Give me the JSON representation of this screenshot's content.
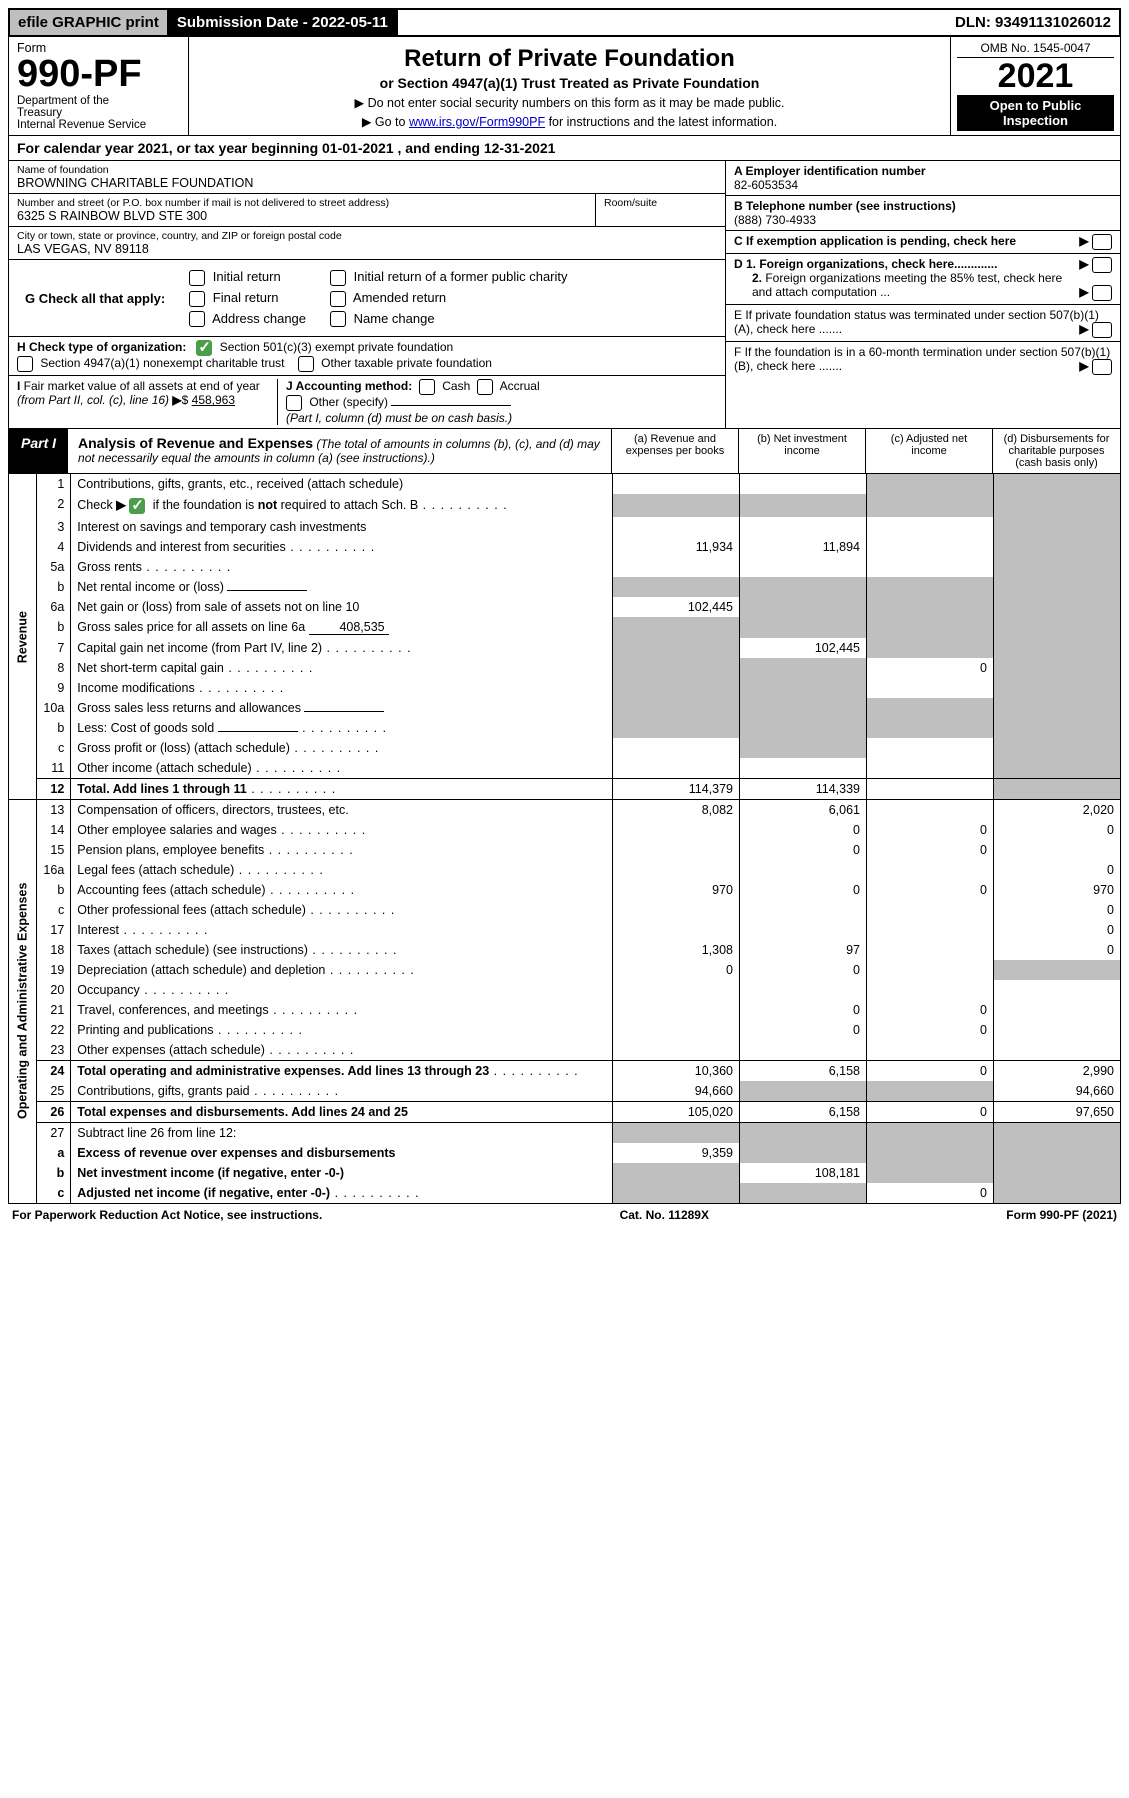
{
  "top": {
    "efile": "efile GRAPHIC print",
    "submission_label": "Submission Date - 2022-05-11",
    "dln": "DLN: 93491131026012"
  },
  "header": {
    "form_word": "Form",
    "form_name": "990-PF",
    "dept": "Department of the Treasury\nInternal Revenue Service",
    "title": "Return of Private Foundation",
    "subtitle": "or Section 4947(a)(1) Trust Treated as Private Foundation",
    "note1": "▶ Do not enter social security numbers on this form as it may be made public.",
    "note2": "▶ Go to www.irs.gov/Form990PF for instructions and the latest information.",
    "irs_link": "www.irs.gov/Form990PF",
    "omb": "OMB No. 1545-0047",
    "year": "2021",
    "open": "Open to Public Inspection"
  },
  "calyear": "For calendar year 2021, or tax year beginning 01-01-2021                           , and ending 12-31-2021",
  "info": {
    "name_label": "Name of foundation",
    "name": "BROWNING CHARITABLE FOUNDATION",
    "addr_label": "Number and street (or P.O. box number if mail is not delivered to street address)",
    "addr": "6325 S RAINBOW BLVD STE 300",
    "room_label": "Room/suite",
    "city_label": "City or town, state or province, country, and ZIP or foreign postal code",
    "city": "LAS VEGAS, NV  89118",
    "ein_label": "A Employer identification number",
    "ein": "82-6053534",
    "phone_label": "B Telephone number (see instructions)",
    "phone": "(888) 730-4933",
    "c_label": "C If exemption application is pending, check here",
    "d1": "D 1. Foreign organizations, check here.............",
    "d2": "2. Foreign organizations meeting the 85% test, check here and attach computation ...",
    "e_label": "E  If private foundation status was terminated under section 507(b)(1)(A), check here .......",
    "f_label": "F  If the foundation is in a 60-month termination under section 507(b)(1)(B), check here ......."
  },
  "g": {
    "label": "G Check all that apply:",
    "opts": [
      "Initial return",
      "Final return",
      "Address change",
      "Initial return of a former public charity",
      "Amended return",
      "Name change"
    ]
  },
  "h": {
    "label": "H Check type of organization:",
    "opt1": "Section 501(c)(3) exempt private foundation",
    "opt2": "Section 4947(a)(1) nonexempt charitable trust",
    "opt3": "Other taxable private foundation"
  },
  "i": {
    "label": "I Fair market value of all assets at end of year (from Part II, col. (c), line 16)",
    "value": "458,963"
  },
  "j": {
    "label": "J Accounting method:",
    "cash": "Cash",
    "accrual": "Accrual",
    "other": "Other (specify)",
    "note": "(Part I, column (d) must be on cash basis.)"
  },
  "part1": {
    "label": "Part I",
    "title": "Analysis of Revenue and Expenses",
    "title_note": " (The total of amounts in columns (b), (c), and (d) may not necessarily equal the amounts in column (a) (see instructions).)",
    "cols": {
      "a": "(a)   Revenue and expenses per books",
      "b": "(b)   Net investment income",
      "c": "(c)   Adjusted net income",
      "d": "(d)   Disbursements for charitable purposes (cash basis only)"
    }
  },
  "sidelabels": {
    "rev": "Revenue",
    "exp": "Operating and Administrative Expenses"
  },
  "rows": [
    {
      "n": "1",
      "d": "Contributions, gifts, grants, etc., received (attach schedule)",
      "a": "",
      "b": "",
      "c": "",
      "dd": "",
      "shade": [
        "c",
        "dd"
      ]
    },
    {
      "n": "2",
      "d": "Check ▶ ☑ if the foundation is not required to attach Sch. B",
      "dots": true,
      "a": "",
      "b": "",
      "c": "",
      "dd": "",
      "shade": [
        "a",
        "b",
        "c",
        "dd"
      ],
      "chk": true
    },
    {
      "n": "3",
      "d": "Interest on savings and temporary cash investments",
      "a": "",
      "b": "",
      "c": "",
      "dd": "",
      "shade": [
        "dd"
      ]
    },
    {
      "n": "4",
      "d": "Dividends and interest from securities",
      "dots": true,
      "a": "11,934",
      "b": "11,894",
      "c": "",
      "dd": "",
      "shade": [
        "dd"
      ]
    },
    {
      "n": "5a",
      "d": "Gross rents",
      "dots": true,
      "a": "",
      "b": "",
      "c": "",
      "dd": "",
      "shade": [
        "dd"
      ]
    },
    {
      "n": "b",
      "d": "Net rental income or (loss)",
      "sub": "",
      "a": "",
      "b": "",
      "c": "",
      "dd": "",
      "shade": [
        "a",
        "b",
        "c",
        "dd"
      ]
    },
    {
      "n": "6a",
      "d": "Net gain or (loss) from sale of assets not on line 10",
      "a": "102,445",
      "b": "",
      "c": "",
      "dd": "",
      "shade": [
        "b",
        "c",
        "dd"
      ]
    },
    {
      "n": "b",
      "d": "Gross sales price for all assets on line 6a",
      "sub": "408,535",
      "a": "",
      "b": "",
      "c": "",
      "dd": "",
      "shade": [
        "a",
        "b",
        "c",
        "dd"
      ]
    },
    {
      "n": "7",
      "d": "Capital gain net income (from Part IV, line 2)",
      "dots": true,
      "a": "",
      "b": "102,445",
      "c": "",
      "dd": "",
      "shade": [
        "a",
        "c",
        "dd"
      ]
    },
    {
      "n": "8",
      "d": "Net short-term capital gain",
      "dots": true,
      "a": "",
      "b": "",
      "c": "0",
      "dd": "",
      "shade": [
        "a",
        "b",
        "dd"
      ]
    },
    {
      "n": "9",
      "d": "Income modifications",
      "dots": true,
      "a": "",
      "b": "",
      "c": "",
      "dd": "",
      "shade": [
        "a",
        "b",
        "dd"
      ]
    },
    {
      "n": "10a",
      "d": "Gross sales less returns and allowances",
      "sub": "",
      "a": "",
      "b": "",
      "c": "",
      "dd": "",
      "shade": [
        "a",
        "b",
        "c",
        "dd"
      ]
    },
    {
      "n": "b",
      "d": "Less: Cost of goods sold",
      "dots": true,
      "sub": "",
      "a": "",
      "b": "",
      "c": "",
      "dd": "",
      "shade": [
        "a",
        "b",
        "c",
        "dd"
      ]
    },
    {
      "n": "c",
      "d": "Gross profit or (loss) (attach schedule)",
      "dots": true,
      "a": "",
      "b": "",
      "c": "",
      "dd": "",
      "shade": [
        "b",
        "dd"
      ]
    },
    {
      "n": "11",
      "d": "Other income (attach schedule)",
      "dots": true,
      "a": "",
      "b": "",
      "c": "",
      "dd": "",
      "shade": [
        "dd"
      ]
    },
    {
      "n": "12",
      "d": "Total. Add lines 1 through 11",
      "dots": true,
      "bold": true,
      "a": "114,379",
      "b": "114,339",
      "c": "",
      "dd": "",
      "shade": [
        "dd"
      ],
      "sep": true
    },
    {
      "n": "13",
      "d": "Compensation of officers, directors, trustees, etc.",
      "a": "8,082",
      "b": "6,061",
      "c": "",
      "dd": "2,020",
      "sep": true
    },
    {
      "n": "14",
      "d": "Other employee salaries and wages",
      "dots": true,
      "a": "",
      "b": "0",
      "c": "0",
      "dd": "0"
    },
    {
      "n": "15",
      "d": "Pension plans, employee benefits",
      "dots": true,
      "a": "",
      "b": "0",
      "c": "0",
      "dd": ""
    },
    {
      "n": "16a",
      "d": "Legal fees (attach schedule)",
      "dots": true,
      "a": "",
      "b": "",
      "c": "",
      "dd": "0"
    },
    {
      "n": "b",
      "d": "Accounting fees (attach schedule)",
      "dots": true,
      "a": "970",
      "b": "0",
      "c": "0",
      "dd": "970"
    },
    {
      "n": "c",
      "d": "Other professional fees (attach schedule)",
      "dots": true,
      "a": "",
      "b": "",
      "c": "",
      "dd": "0"
    },
    {
      "n": "17",
      "d": "Interest",
      "dots": true,
      "a": "",
      "b": "",
      "c": "",
      "dd": "0"
    },
    {
      "n": "18",
      "d": "Taxes (attach schedule) (see instructions)",
      "dots": true,
      "a": "1,308",
      "b": "97",
      "c": "",
      "dd": "0"
    },
    {
      "n": "19",
      "d": "Depreciation (attach schedule) and depletion",
      "dots": true,
      "a": "0",
      "b": "0",
      "c": "",
      "dd": "",
      "shade": [
        "dd"
      ]
    },
    {
      "n": "20",
      "d": "Occupancy",
      "dots": true,
      "a": "",
      "b": "",
      "c": "",
      "dd": ""
    },
    {
      "n": "21",
      "d": "Travel, conferences, and meetings",
      "dots": true,
      "a": "",
      "b": "0",
      "c": "0",
      "dd": ""
    },
    {
      "n": "22",
      "d": "Printing and publications",
      "dots": true,
      "a": "",
      "b": "0",
      "c": "0",
      "dd": ""
    },
    {
      "n": "23",
      "d": "Other expenses (attach schedule)",
      "dots": true,
      "a": "",
      "b": "",
      "c": "",
      "dd": ""
    },
    {
      "n": "24",
      "d": "Total operating and administrative expenses. Add lines 13 through 23",
      "dots": true,
      "bold": true,
      "a": "10,360",
      "b": "6,158",
      "c": "0",
      "dd": "2,990",
      "sep": true
    },
    {
      "n": "25",
      "d": "Contributions, gifts, grants paid",
      "dots": true,
      "a": "94,660",
      "b": "",
      "c": "",
      "dd": "94,660",
      "shade": [
        "b",
        "c"
      ]
    },
    {
      "n": "26",
      "d": "Total expenses and disbursements. Add lines 24 and 25",
      "bold": true,
      "a": "105,020",
      "b": "6,158",
      "c": "0",
      "dd": "97,650",
      "sep": true
    },
    {
      "n": "27",
      "d": "Subtract line 26 from line 12:",
      "a": "",
      "b": "",
      "c": "",
      "dd": "",
      "shade": [
        "a",
        "b",
        "c",
        "dd"
      ],
      "sep": true
    },
    {
      "n": "a",
      "d": "Excess of revenue over expenses and disbursements",
      "bold": true,
      "a": "9,359",
      "b": "",
      "c": "",
      "dd": "",
      "shade": [
        "b",
        "c",
        "dd"
      ]
    },
    {
      "n": "b",
      "d": "Net investment income (if negative, enter -0-)",
      "bold": true,
      "a": "",
      "b": "108,181",
      "c": "",
      "dd": "",
      "shade": [
        "a",
        "c",
        "dd"
      ]
    },
    {
      "n": "c",
      "d": "Adjusted net income (if negative, enter -0-)",
      "dots": true,
      "bold": true,
      "a": "",
      "b": "",
      "c": "0",
      "dd": "",
      "shade": [
        "a",
        "b",
        "dd"
      ]
    }
  ],
  "footer": {
    "left": "For Paperwork Reduction Act Notice, see instructions.",
    "mid": "Cat. No. 11289X",
    "right": "Form 990-PF (2021)"
  },
  "colors": {
    "shade": "#bfbfbf",
    "link": "#0000cc",
    "check": "#4a9d4a"
  }
}
